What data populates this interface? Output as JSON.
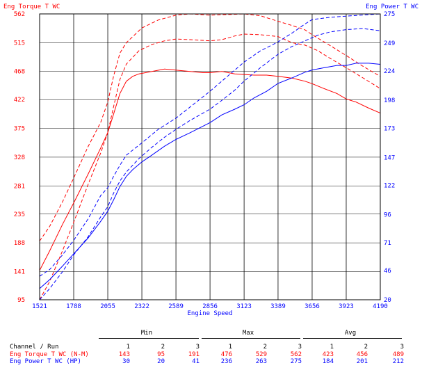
{
  "chart_data": {
    "type": "line",
    "xlabel": "Engine Speed",
    "ylabel_left": "Eng Torque T WC",
    "ylabel_right": "Eng Power T WC",
    "xlim": [
      1521,
      4190
    ],
    "ylim_left": [
      95,
      562
    ],
    "ylim_right": [
      20,
      275
    ],
    "x_ticks": [
      1521,
      1788,
      2055,
      2322,
      2589,
      2856,
      3123,
      3389,
      3656,
      3923,
      4190
    ],
    "y_ticks_left": [
      95,
      141,
      188,
      235,
      281,
      328,
      375,
      422,
      468,
      515,
      562
    ],
    "y_ticks_right": [
      20,
      46,
      71,
      96,
      122,
      147,
      173,
      198,
      224,
      249,
      275
    ],
    "grid": true,
    "colors": {
      "torque": "#ff0000",
      "power": "#0000ff",
      "grid": "#000000"
    },
    "series": [
      {
        "name": "Eng Torque T WC",
        "run": 1,
        "axis": "left",
        "style": "solid",
        "x": [
          1521,
          1600,
          1700,
          1800,
          1900,
          2000,
          2055,
          2100,
          2150,
          2200,
          2250,
          2300,
          2400,
          2500,
          2600,
          2700,
          2800,
          2856,
          2950,
          3050,
          3123,
          3200,
          3300,
          3389,
          3500,
          3600,
          3656,
          3750,
          3850,
          3923,
          4000,
          4100,
          4190
        ],
        "y": [
          143,
          175,
          218,
          258,
          300,
          343,
          368,
          398,
          432,
          452,
          460,
          464,
          468,
          472,
          470,
          468,
          466,
          466,
          468,
          464,
          463,
          462,
          462,
          460,
          457,
          452,
          448,
          440,
          432,
          423,
          418,
          408,
          400
        ]
      },
      {
        "name": "Eng Torque T WC",
        "run": 2,
        "axis": "left",
        "style": "dashed",
        "x": [
          1521,
          1600,
          1700,
          1800,
          1900,
          2000,
          2055,
          2100,
          2150,
          2200,
          2300,
          2400,
          2500,
          2589,
          2700,
          2856,
          2950,
          3050,
          3123,
          3250,
          3389,
          3500,
          3600,
          3700,
          3800,
          3923,
          4050,
          4190
        ],
        "y": [
          95,
          125,
          175,
          228,
          283,
          335,
          368,
          410,
          455,
          480,
          502,
          512,
          518,
          521,
          520,
          518,
          520,
          526,
          529,
          528,
          525,
          515,
          511,
          502,
          489,
          474,
          458,
          440
        ]
      },
      {
        "name": "Eng Torque T WC",
        "run": 3,
        "axis": "left",
        "style": "dashed",
        "x": [
          1521,
          1600,
          1700,
          1788,
          1900,
          2000,
          2055,
          2100,
          2150,
          2200,
          2322,
          2450,
          2589,
          2700,
          2856,
          3000,
          3123,
          3250,
          3389,
          3500,
          3600,
          3656,
          3800,
          3923,
          4050,
          4190
        ],
        "y": [
          191,
          215,
          255,
          294,
          345,
          385,
          418,
          460,
          498,
          515,
          539,
          552,
          560,
          562,
          560,
          561,
          562,
          559,
          550,
          543,
          536,
          528,
          510,
          494,
          477,
          460
        ]
      },
      {
        "name": "Eng Power T WC",
        "run": 1,
        "axis": "right",
        "style": "solid",
        "x": [
          1521,
          1600,
          1700,
          1788,
          1900,
          2000,
          2055,
          2100,
          2150,
          2200,
          2250,
          2322,
          2400,
          2500,
          2589,
          2700,
          2856,
          2950,
          3050,
          3123,
          3200,
          3300,
          3389,
          3500,
          3600,
          3656,
          3750,
          3850,
          3923,
          4000,
          4100,
          4190
        ],
        "y": [
          30,
          38,
          50,
          61,
          75,
          90,
          99,
          109,
          121,
          130,
          136,
          143,
          149,
          157,
          163,
          169,
          178,
          185,
          190,
          194,
          200,
          206,
          213,
          218,
          223,
          225,
          227,
          229,
          229,
          231,
          231,
          230
        ]
      },
      {
        "name": "Eng Power T WC",
        "run": 2,
        "axis": "right",
        "style": "dashed",
        "x": [
          1521,
          1600,
          1700,
          1788,
          1900,
          2000,
          2055,
          2100,
          2150,
          2200,
          2300,
          2400,
          2500,
          2589,
          2700,
          2856,
          2950,
          3050,
          3123,
          3250,
          3389,
          3500,
          3600,
          3700,
          3800,
          3923,
          4050,
          4190
        ],
        "y": [
          20,
          30,
          45,
          60,
          76,
          94,
          103,
          115,
          126,
          134,
          146,
          156,
          165,
          172,
          180,
          190,
          198,
          207,
          215,
          227,
          239,
          246,
          251,
          256,
          259,
          261,
          262,
          260
        ]
      },
      {
        "name": "Eng Power T WC",
        "run": 3,
        "axis": "right",
        "style": "dashed",
        "x": [
          1521,
          1600,
          1700,
          1788,
          1900,
          2000,
          2055,
          2100,
          2150,
          2200,
          2322,
          2450,
          2589,
          2700,
          2856,
          3000,
          3123,
          3250,
          3389,
          3500,
          3600,
          3656,
          3800,
          3923,
          4050,
          4190
        ],
        "y": [
          41,
          47,
          60,
          73,
          92,
          113,
          120,
          130,
          140,
          149,
          160,
          172,
          182,
          192,
          206,
          220,
          232,
          242,
          250,
          258,
          266,
          270,
          272,
          273,
          274,
          275
        ]
      }
    ]
  },
  "stats_table": {
    "groups": [
      "Min",
      "Max",
      "Avg"
    ],
    "header_label": "Channel / Run",
    "runs": [
      "1",
      "2",
      "3",
      "1",
      "2",
      "3",
      "1",
      "2",
      "3"
    ],
    "rows": [
      {
        "label": "Eng Torque T WC (N-M)",
        "color": "#ff0000",
        "values": [
          "143",
          "95",
          "191",
          "476",
          "529",
          "562",
          "423",
          "456",
          "489"
        ]
      },
      {
        "label": "Eng Power T WC (HP)",
        "color": "#0000ff",
        "values": [
          "30",
          "20",
          "41",
          "236",
          "263",
          "275",
          "184",
          "201",
          "212"
        ]
      }
    ]
  }
}
